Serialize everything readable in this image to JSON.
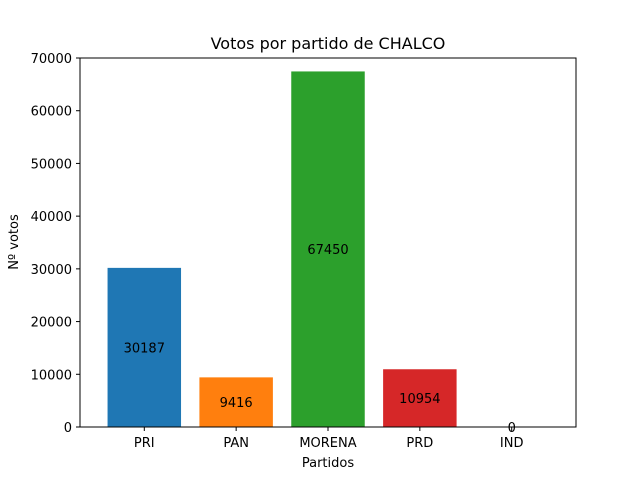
{
  "chart_data": {
    "type": "bar",
    "title": "Votos por partido de CHALCO",
    "xlabel": "Partidos",
    "ylabel": "Nº votos",
    "categories": [
      "PRI",
      "PAN",
      "MORENA",
      "PRD",
      "IND"
    ],
    "values": [
      30187,
      9416,
      67450,
      10954,
      0
    ],
    "colors": [
      "#1f77b4",
      "#ff7f0e",
      "#2ca02c",
      "#d62728",
      "#9467bd"
    ],
    "ylim": [
      0,
      70000
    ],
    "yticks": [
      0,
      10000,
      20000,
      30000,
      40000,
      50000,
      60000,
      70000
    ],
    "grid": false,
    "legend": "none"
  }
}
